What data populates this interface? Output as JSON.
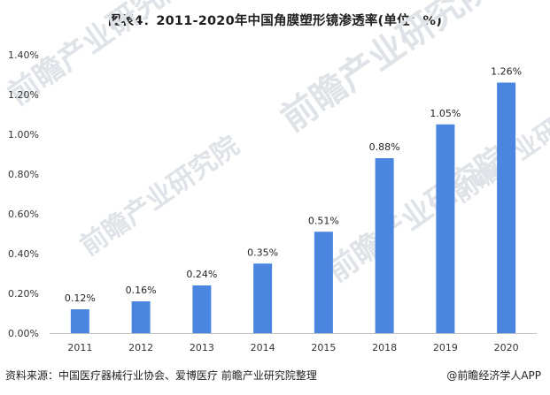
{
  "title": "图表4：2011-2020年中国角膜塑形镜渗透率(单位：%)",
  "footer": {
    "source": "资料来源：中国医疗器械行业协会、爱博医疗 前瞻产业研究院整理",
    "brand": "@前瞻经济学人APP"
  },
  "watermark": {
    "text": "前瞻产业研究院"
  },
  "colors": {
    "bar": "#4a86e0",
    "axis": "#bfbfbf",
    "text": "#333333"
  },
  "chart_data": {
    "type": "bar",
    "title": "图表4：2011-2020年中国角膜塑形镜渗透率(单位：%)",
    "xlabel": "",
    "ylabel": "",
    "categories": [
      "2011",
      "2012",
      "2013",
      "2014",
      "2015",
      "2018",
      "2019",
      "2020"
    ],
    "values": [
      0.12,
      0.16,
      0.24,
      0.35,
      0.51,
      0.88,
      1.05,
      1.26
    ],
    "value_labels": [
      "0.12%",
      "0.16%",
      "0.24%",
      "0.35%",
      "0.51%",
      "0.88%",
      "1.05%",
      "1.26%"
    ],
    "ylim": [
      0,
      1.4
    ],
    "yticks": [
      0,
      0.2,
      0.4,
      0.6,
      0.8,
      1.0,
      1.2,
      1.4
    ],
    "ytick_labels": [
      "0.00%",
      "0.20%",
      "0.40%",
      "0.60%",
      "0.80%",
      "1.00%",
      "1.20%",
      "1.40%"
    ],
    "grid": false,
    "legend": "none"
  }
}
